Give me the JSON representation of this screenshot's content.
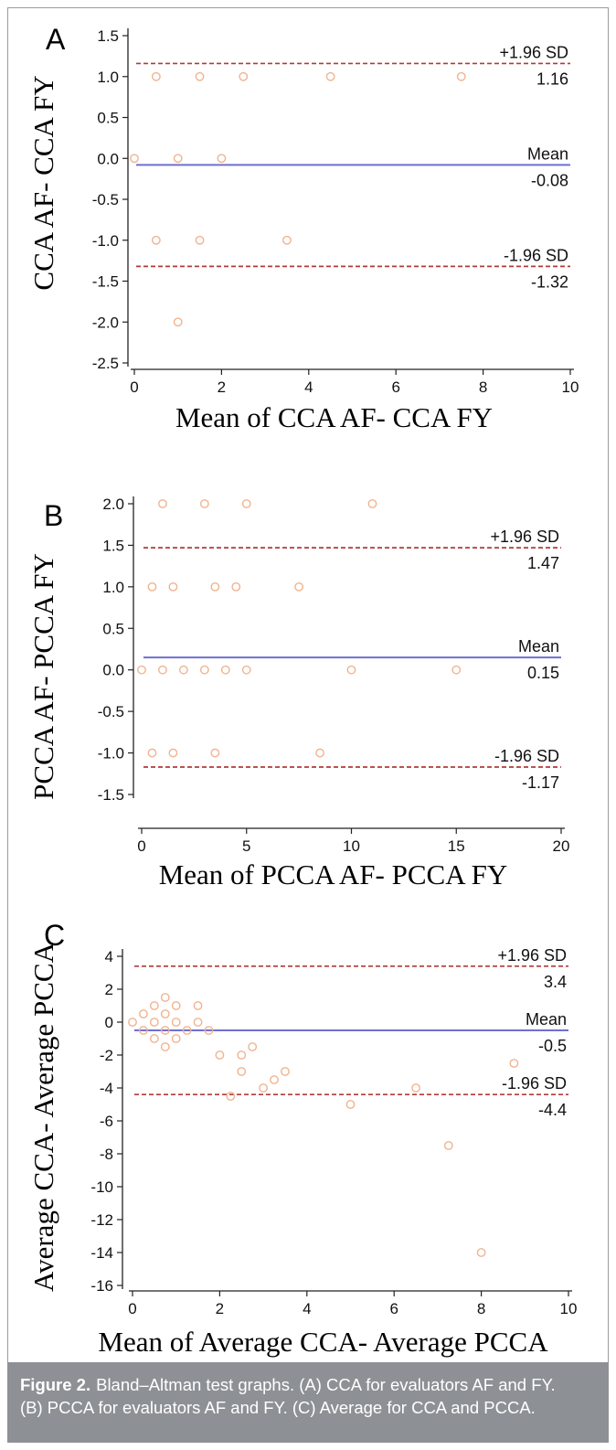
{
  "chart_data": [
    {
      "type": "scatter",
      "panel_letter": "A",
      "ylabel": "CCA AF- CCA FY",
      "xlabel": "Mean of CCA AF- CCA FY",
      "xlim": [
        0,
        10
      ],
      "ylim": [
        -2.5,
        1.5
      ],
      "xticks": [
        "0",
        "2",
        "4",
        "6",
        "8",
        "10"
      ],
      "yticks": [
        "1.5",
        "1.0",
        "0.5",
        "0.0",
        "-0.5",
        "-1.0",
        "-1.5",
        "-2.0",
        "-2.5"
      ],
      "series": [
        {
          "points": [
            [
              0.5,
              1.0
            ],
            [
              1.5,
              1.0
            ],
            [
              2.5,
              1.0
            ],
            [
              4.5,
              1.0
            ],
            [
              7.5,
              1.0
            ],
            [
              0,
              0
            ],
            [
              1,
              0
            ],
            [
              2,
              0
            ],
            [
              0.5,
              -1.0
            ],
            [
              1.5,
              -1.0
            ],
            [
              3.5,
              -1.0
            ],
            [
              1,
              -2.0
            ]
          ]
        }
      ],
      "lines": {
        "upper": {
          "label": "+1.96 SD",
          "value_label": "1.16",
          "value": 1.16
        },
        "mean": {
          "label": "Mean",
          "value_label": "-0.08",
          "value": -0.08
        },
        "lower": {
          "label": "-1.96 SD",
          "value_label": "-1.32",
          "value": -1.32
        }
      }
    },
    {
      "type": "scatter",
      "panel_letter": "B",
      "ylabel": "PCCA AF- PCCA FY",
      "xlabel": "Mean of PCCA AF- PCCA FY",
      "xlim": [
        0,
        20
      ],
      "ylim": [
        -1.5,
        2.0
      ],
      "xticks": [
        "0",
        "5",
        "10",
        "15",
        "20"
      ],
      "yticks": [
        "2.0",
        "1.5",
        "1.0",
        "0.5",
        "0.0",
        "-0.5",
        "-1.0",
        "-1.5"
      ],
      "series": [
        {
          "points": [
            [
              1,
              2.0
            ],
            [
              3,
              2.0
            ],
            [
              5,
              2.0
            ],
            [
              11,
              2.0
            ],
            [
              0.5,
              1.0
            ],
            [
              1.5,
              1.0
            ],
            [
              3.5,
              1.0
            ],
            [
              4.5,
              1.0
            ],
            [
              7.5,
              1.0
            ],
            [
              0,
              0
            ],
            [
              1,
              0
            ],
            [
              2,
              0
            ],
            [
              3,
              0
            ],
            [
              4,
              0
            ],
            [
              5,
              0
            ],
            [
              10,
              0
            ],
            [
              15,
              0
            ],
            [
              0.5,
              -1.0
            ],
            [
              1.5,
              -1.0
            ],
            [
              3.5,
              -1.0
            ],
            [
              8.5,
              -1.0
            ]
          ]
        }
      ],
      "lines": {
        "upper": {
          "label": "+1.96 SD",
          "value_label": "1.47",
          "value": 1.47
        },
        "mean": {
          "label": "Mean",
          "value_label": "0.15",
          "value": 0.15
        },
        "lower": {
          "label": "-1.96 SD",
          "value_label": "-1.17",
          "value": -1.17
        }
      }
    },
    {
      "type": "scatter",
      "panel_letter": "C",
      "ylabel": "Average CCA- Average PCCA",
      "xlabel": "Mean of Average CCA- Average PCCA",
      "xlim": [
        0,
        10
      ],
      "ylim": [
        -16,
        4
      ],
      "xticks": [
        "0",
        "2",
        "4",
        "6",
        "8",
        "10"
      ],
      "yticks": [
        "4",
        "2",
        "0",
        "-2",
        "-4",
        "-6",
        "-8",
        "-10",
        "-12",
        "-14",
        "-16"
      ],
      "series": [
        {
          "points": [
            [
              0,
              0
            ],
            [
              0.25,
              0.5
            ],
            [
              0.25,
              -0.5
            ],
            [
              0.5,
              1.0
            ],
            [
              0.5,
              0
            ],
            [
              0.5,
              -1.0
            ],
            [
              0.75,
              1.5
            ],
            [
              0.75,
              0.5
            ],
            [
              0.75,
              -0.5
            ],
            [
              0.75,
              -1.5
            ],
            [
              1,
              1.0
            ],
            [
              1,
              0
            ],
            [
              1,
              -1.0
            ],
            [
              1.25,
              -0.5
            ],
            [
              1.5,
              1.0
            ],
            [
              1.5,
              0
            ],
            [
              1.75,
              -0.5
            ],
            [
              2,
              -2.0
            ],
            [
              2.25,
              -4.5
            ],
            [
              2.5,
              -2.0
            ],
            [
              2.5,
              -3.0
            ],
            [
              2.75,
              -1.5
            ],
            [
              3,
              -4.0
            ],
            [
              3.25,
              -3.5
            ],
            [
              3.5,
              -3.0
            ],
            [
              5,
              -5.0
            ],
            [
              6.5,
              -4.0
            ],
            [
              7.25,
              -7.5
            ],
            [
              8,
              -14.0
            ],
            [
              8.75,
              -2.5
            ]
          ]
        }
      ],
      "lines": {
        "upper": {
          "label": "+1.96 SD",
          "value_label": "3.4",
          "value": 3.4
        },
        "mean": {
          "label": "Mean",
          "value_label": "-0.5",
          "value": -0.5
        },
        "lower": {
          "label": "-1.96 SD",
          "value_label": "-4.4",
          "value": -4.4
        }
      }
    }
  ],
  "caption": {
    "label": "Figure 2.",
    "line1": "Bland–Altman test graphs. (A) CCA for evaluators AF and FY.",
    "line2": "(B) PCCA for evaluators AF and FY. (C) Average for CCA and PCCA."
  },
  "colors": {
    "marker": "#f0b38e",
    "mean_line": "#6f6fd0",
    "sd_line": "#b23a3a",
    "caption_bg": "#8d9196"
  }
}
